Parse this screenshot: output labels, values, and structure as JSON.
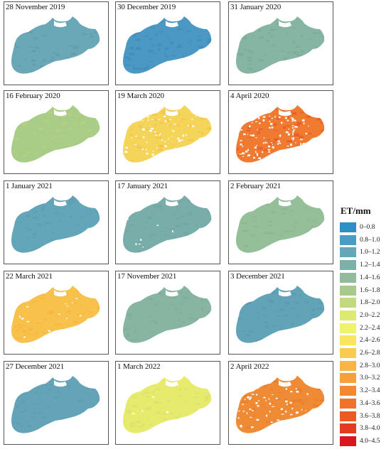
{
  "panels": [
    {
      "title": "28 November 2019",
      "color": "#6ba8b7",
      "texture": "#5e9aab",
      "speckle": 0
    },
    {
      "title": "30 December 2019",
      "color": "#4a98c3",
      "texture": "#3f8bb9",
      "speckle": 0
    },
    {
      "title": "31 January 2020",
      "color": "#86b5a3",
      "texture": "#7aab97",
      "speckle": 0
    },
    {
      "title": "16 February 2020",
      "color": "#a9cc87",
      "texture": "#b9d27f",
      "speckle": 0
    },
    {
      "title": "19 March 2020",
      "color": "#f5d45a",
      "texture": "#f2c24a",
      "speckle": 0.35
    },
    {
      "title": "4 April 2020",
      "color": "#ef7a30",
      "texture": "#e6562a",
      "speckle": 0.7
    },
    {
      "title": "1 January 2021",
      "color": "#63a6b9",
      "texture": "#5b9db3",
      "speckle": 0
    },
    {
      "title": "17 January 2021",
      "color": "#79ada9",
      "texture": "#6ea6a6",
      "speckle": 0.05
    },
    {
      "title": "2 February 2021",
      "color": "#95bf99",
      "texture": "#8bb78f",
      "speckle": 0
    },
    {
      "title": "22 March 2021",
      "color": "#f8c14b",
      "texture": "#f5b33f",
      "speckle": 0.1
    },
    {
      "title": "17 November 2021",
      "color": "#87b5a2",
      "texture": "#7eae9b",
      "speckle": 0
    },
    {
      "title": "3 December 2021",
      "color": "#62a3b8",
      "texture": "#5799b0",
      "speckle": 0
    },
    {
      "title": "27 December 2021",
      "color": "#65a4b8",
      "texture": "#5c9cb2",
      "speckle": 0
    },
    {
      "title": "1 March 2022",
      "color": "#e6eb6e",
      "texture": "#d8e16b",
      "speckle": 0.05
    },
    {
      "title": "2 April 2022",
      "color": "#f08b35",
      "texture": "#ea7a2e",
      "speckle": 0.45
    }
  ],
  "legend": {
    "title": "ET/mm",
    "items": [
      {
        "label": "0–0.8",
        "color": "#2e8fc6"
      },
      {
        "label": "0.8–1.0",
        "color": "#4a9cc3"
      },
      {
        "label": "1.0–1.2",
        "color": "#65a7b9"
      },
      {
        "label": "1.2–1.4",
        "color": "#7cb0a9"
      },
      {
        "label": "1.4–1.6",
        "color": "#91bb9c"
      },
      {
        "label": "1.6–1.8",
        "color": "#a7c98c"
      },
      {
        "label": "1.8–2.0",
        "color": "#c3d97d"
      },
      {
        "label": "2.0–2.2",
        "color": "#dcea72"
      },
      {
        "label": "2.2–2.4",
        "color": "#eef26d"
      },
      {
        "label": "2.4–2.6",
        "color": "#f8e663"
      },
      {
        "label": "2.6–2.8",
        "color": "#f8cc4f"
      },
      {
        "label": "2.8–3.0",
        "color": "#f8b545"
      },
      {
        "label": "3.0–3.2",
        "color": "#f6a03c"
      },
      {
        "label": "3.2–3.4",
        "color": "#f38932"
      },
      {
        "label": "3.4–3.6",
        "color": "#ef742b"
      },
      {
        "label": "3.6–3.8",
        "color": "#ea5a25"
      },
      {
        "label": "3.8–4.0",
        "color": "#e33b21"
      },
      {
        "label": "4.0–4.5",
        "color": "#d9161f"
      }
    ]
  }
}
